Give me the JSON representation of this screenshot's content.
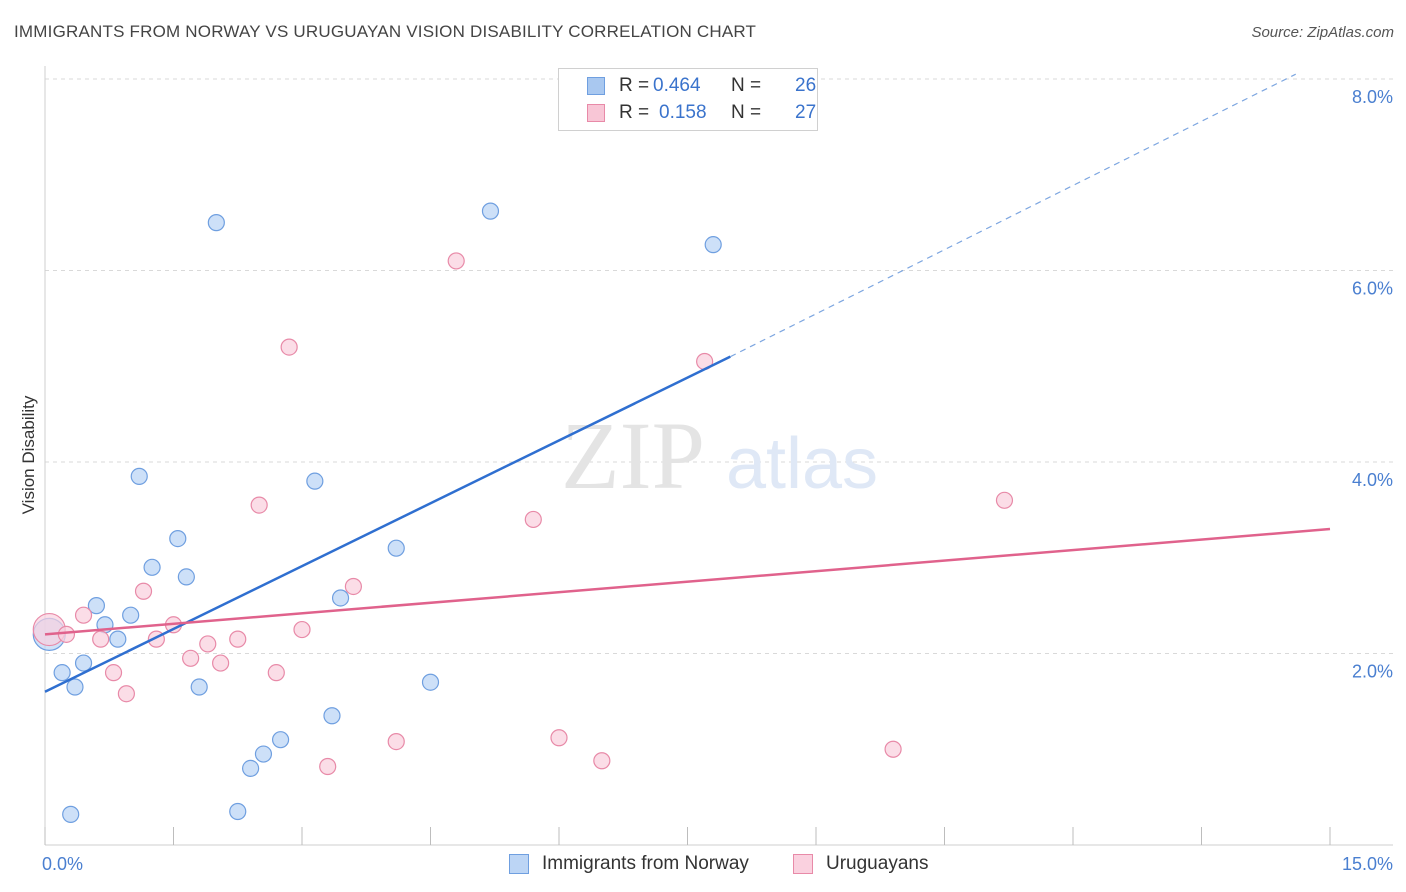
{
  "header": {
    "title": "IMMIGRANTS FROM NORWAY VS URUGUAYAN VISION DISABILITY CORRELATION CHART",
    "source": "Source: ZipAtlas.com"
  },
  "watermark": {
    "zip": "ZIP",
    "atlas": "atlas"
  },
  "legend": {
    "rows": [
      {
        "r_label": "R =",
        "r_value": "0.464",
        "n_label": "N =",
        "n_value": "26",
        "color": "#a9c8f0",
        "border": "#6f9fe0"
      },
      {
        "r_label": "R =",
        "r_value": "0.158",
        "n_label": "N =",
        "n_value": "27",
        "color": "#f8c6d6",
        "border": "#e88aa8"
      }
    ]
  },
  "bottom_legend": [
    {
      "label": "Immigrants from Norway",
      "color": "#bcd5f5",
      "border": "#6f9fe0"
    },
    {
      "label": "Uruguayans",
      "color": "#fad1df",
      "border": "#e88aa8"
    }
  ],
  "chart_data": {
    "type": "scatter",
    "title": "IMMIGRANTS FROM NORWAY VS URUGUAYAN VISION DISABILITY CORRELATION CHART",
    "xlabel": "",
    "ylabel": "Vision Disability",
    "xlim": [
      0,
      15
    ],
    "ylim": [
      0,
      8.2
    ],
    "x_tick_labels": [
      {
        "value": 0,
        "label": "0.0%"
      },
      {
        "value": 15,
        "label": "15.0%"
      }
    ],
    "x_minor_ticks": [
      0,
      1.5,
      3,
      4.5,
      6,
      7.5,
      9,
      10.5,
      12,
      13.5,
      15
    ],
    "y_ticks": [
      {
        "value": 2,
        "label": "2.0%"
      },
      {
        "value": 4,
        "label": "4.0%"
      },
      {
        "value": 6,
        "label": "6.0%"
      },
      {
        "value": 8,
        "label": "8.0%"
      }
    ],
    "series": [
      {
        "name": "Immigrants from Norway",
        "color": "#6f9fe0",
        "fill": "#bcd5f5",
        "line_color": "#2f6fd0",
        "points": [
          [
            0.05,
            2.2
          ],
          [
            0.2,
            1.8
          ],
          [
            0.35,
            1.65
          ],
          [
            0.45,
            1.9
          ],
          [
            0.6,
            2.5
          ],
          [
            0.7,
            2.3
          ],
          [
            0.85,
            2.15
          ],
          [
            1.0,
            2.4
          ],
          [
            1.1,
            3.85
          ],
          [
            1.25,
            2.9
          ],
          [
            1.55,
            3.2
          ],
          [
            1.65,
            2.8
          ],
          [
            1.8,
            1.65
          ],
          [
            2.0,
            6.5
          ],
          [
            2.25,
            0.35
          ],
          [
            2.4,
            0.8
          ],
          [
            2.55,
            0.95
          ],
          [
            2.75,
            1.1
          ],
          [
            3.15,
            3.8
          ],
          [
            3.35,
            1.35
          ],
          [
            3.45,
            2.58
          ],
          [
            4.1,
            3.1
          ],
          [
            4.5,
            1.7
          ],
          [
            5.2,
            6.62
          ],
          [
            7.8,
            6.27
          ],
          [
            0.3,
            0.32
          ]
        ],
        "trend": {
          "x0": 0,
          "y0": 1.6,
          "x1": 8.0,
          "y1": 5.1,
          "dash_to_x": 14.6,
          "dash_to_y": 8.05
        }
      },
      {
        "name": "Uruguayans",
        "color": "#e88aa8",
        "fill": "#fad1df",
        "line_color": "#e0628c",
        "points": [
          [
            0.05,
            2.25
          ],
          [
            0.25,
            2.2
          ],
          [
            0.45,
            2.4
          ],
          [
            0.65,
            2.15
          ],
          [
            0.8,
            1.8
          ],
          [
            0.95,
            1.58
          ],
          [
            1.15,
            2.65
          ],
          [
            1.3,
            2.15
          ],
          [
            1.5,
            2.3
          ],
          [
            1.7,
            1.95
          ],
          [
            1.9,
            2.1
          ],
          [
            2.05,
            1.9
          ],
          [
            2.25,
            2.15
          ],
          [
            2.5,
            3.55
          ],
          [
            2.7,
            1.8
          ],
          [
            2.85,
            5.2
          ],
          [
            3.0,
            2.25
          ],
          [
            3.3,
            0.82
          ],
          [
            3.6,
            2.7
          ],
          [
            4.1,
            1.08
          ],
          [
            4.8,
            6.1
          ],
          [
            5.7,
            3.4
          ],
          [
            6.0,
            1.12
          ],
          [
            6.5,
            0.88
          ],
          [
            7.7,
            5.05
          ],
          [
            9.9,
            1.0
          ],
          [
            11.2,
            3.6
          ]
        ],
        "trend": {
          "x0": 0,
          "y0": 2.2,
          "x1": 15,
          "y1": 3.3
        }
      }
    ]
  }
}
